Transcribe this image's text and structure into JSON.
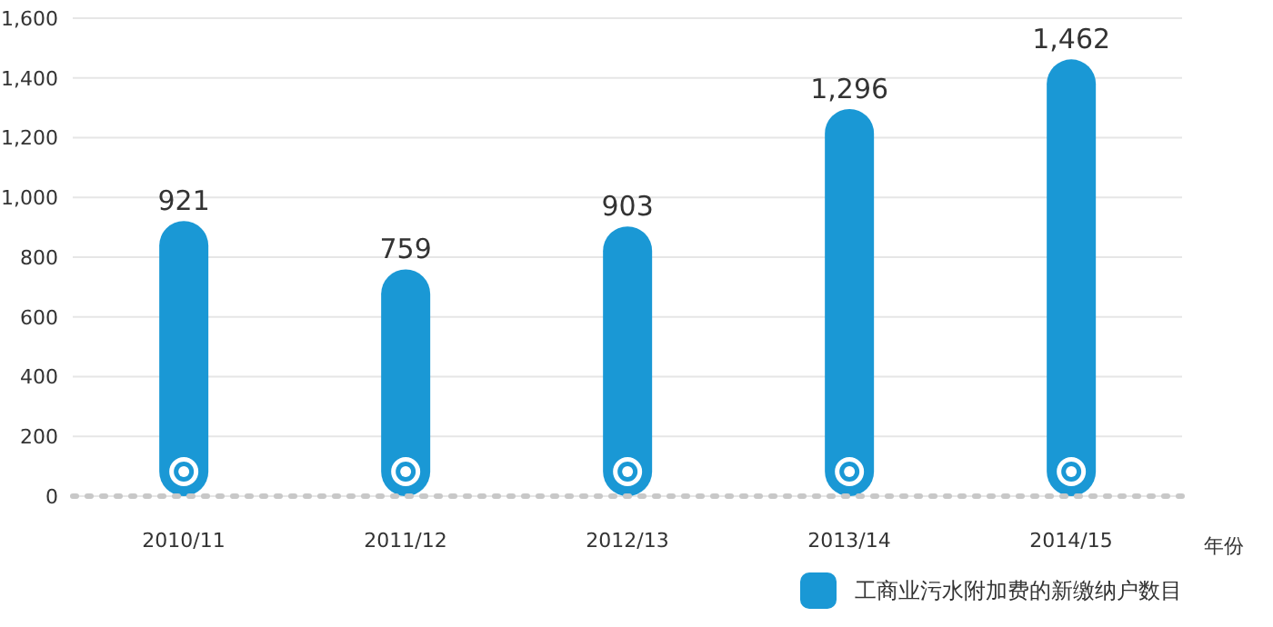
{
  "chart_data": {
    "type": "bar",
    "categories": [
      "2010/11",
      "2011/12",
      "2012/13",
      "2013/14",
      "2014/15"
    ],
    "series": [
      {
        "name": "工商业污水附加费的新缴纳户数目",
        "color": "#1a98d5",
        "values": [
          921,
          759,
          903,
          1296,
          1462
        ]
      }
    ],
    "xlabel": "年份",
    "ylim": [
      0,
      1600
    ],
    "yticks": [
      {
        "value": 0,
        "label": "0"
      },
      {
        "value": 200,
        "label": "200"
      },
      {
        "value": 400,
        "label": "400"
      },
      {
        "value": 600,
        "label": "600"
      },
      {
        "value": 800,
        "label": "800"
      },
      {
        "value": 1000,
        "label": "1,000"
      },
      {
        "value": 1200,
        "label": "1,200"
      },
      {
        "value": 1400,
        "label": "1,400"
      },
      {
        "value": 1600,
        "label": "1,600"
      }
    ],
    "value_labels": [
      "921",
      "759",
      "903",
      "1,296",
      "1,462"
    ],
    "grid": "y",
    "legend": "bottom right"
  }
}
